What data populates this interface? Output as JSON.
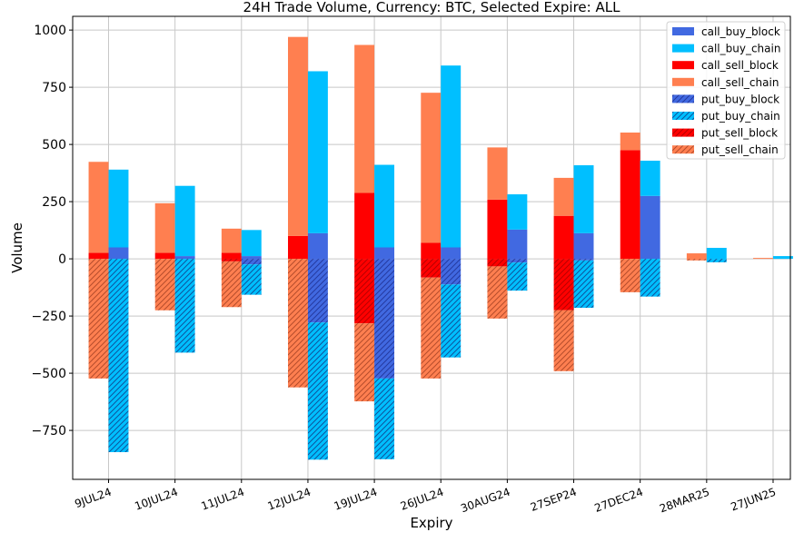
{
  "chart_data": {
    "type": "bar",
    "stacked": true,
    "title": "24H Trade Volume, Currency: BTC, Selected Expire: ALL",
    "xlabel": "Expiry",
    "ylabel": "Volume",
    "ylim": [
      -964,
      1060
    ],
    "yticks": [
      -750,
      -500,
      -250,
      0,
      250,
      500,
      750,
      1000
    ],
    "ytick_labels": [
      "−750",
      "−500",
      "−250",
      "0",
      "250",
      "500",
      "750",
      "1000"
    ],
    "grid": true,
    "legend_position": "top-right",
    "categories": [
      "9JUL24",
      "10JUL24",
      "11JUL24",
      "12JUL24",
      "19JUL24",
      "26JUL24",
      "30AUG24",
      "27SEP24",
      "27DEC24",
      "28MAR25",
      "27JUN25"
    ],
    "series": [
      {
        "name": "call_buy_block",
        "side": "buy",
        "color": "#4169e1",
        "hatch": false,
        "values": [
          50,
          12,
          12,
          112,
          50,
          50,
          128,
          112,
          275,
          0,
          0
        ]
      },
      {
        "name": "call_buy_chain",
        "side": "buy",
        "color": "#00bfff",
        "hatch": false,
        "values": [
          340,
          307,
          114,
          708,
          361,
          795,
          154,
          297,
          154,
          48,
          12
        ]
      },
      {
        "name": "call_sell_block",
        "side": "sell",
        "color": "#ff0000",
        "hatch": false,
        "values": [
          26,
          26,
          26,
          100,
          288,
          70,
          259,
          188,
          475,
          0,
          0
        ]
      },
      {
        "name": "call_sell_chain",
        "side": "sell",
        "color": "#ff7f50",
        "hatch": false,
        "values": [
          398,
          217,
          106,
          870,
          647,
          656,
          228,
          166,
          77,
          24,
          4
        ]
      },
      {
        "name": "put_buy_block",
        "side": "buy",
        "color": "#4169e1",
        "hatch": true,
        "values": [
          0,
          0,
          -24,
          -278,
          -523,
          -112,
          -16,
          -7,
          0,
          0,
          0
        ]
      },
      {
        "name": "put_buy_chain",
        "side": "buy",
        "color": "#00bfff",
        "hatch": true,
        "values": [
          -845,
          -410,
          -133,
          -600,
          -353,
          -319,
          -123,
          -207,
          -165,
          -15,
          0
        ]
      },
      {
        "name": "put_sell_block",
        "side": "sell",
        "color": "#ff0000",
        "hatch": true,
        "values": [
          0,
          0,
          -11,
          0,
          -282,
          -82,
          -33,
          -224,
          0,
          0,
          0
        ]
      },
      {
        "name": "put_sell_chain",
        "side": "sell",
        "color": "#ff7f50",
        "hatch": true,
        "values": [
          -523,
          -225,
          -200,
          -562,
          -341,
          -441,
          -228,
          -267,
          -146,
          -7,
          0
        ]
      }
    ]
  }
}
